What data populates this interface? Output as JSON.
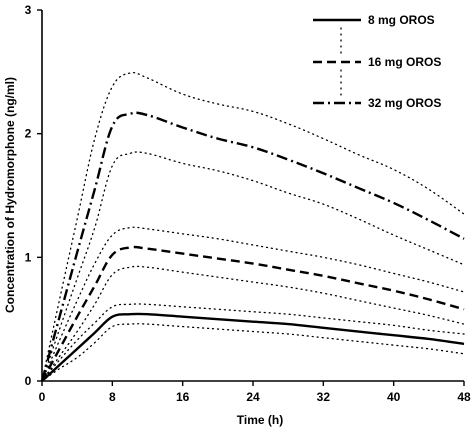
{
  "chart_data": {
    "type": "line",
    "title": "",
    "xlabel": "Time (h)",
    "ylabel": "Concentration of Hydromorphone (ng/ml)",
    "xlim": [
      0,
      48
    ],
    "ylim": [
      0,
      3
    ],
    "x_ticks": [
      "0",
      "8",
      "16",
      "24",
      "32",
      "40",
      "48"
    ],
    "y_ticks": [
      "0",
      "1",
      "2",
      "3"
    ],
    "grid": false,
    "legend_position": "top-right",
    "series": [
      {
        "name": "8 mg OROS",
        "style": "solid",
        "x": [
          0,
          2,
          4,
          6,
          8,
          10,
          12,
          16,
          20,
          24,
          28,
          32,
          36,
          40,
          44,
          48
        ],
        "y": [
          0,
          0.13,
          0.26,
          0.39,
          0.52,
          0.54,
          0.54,
          0.52,
          0.5,
          0.48,
          0.46,
          0.43,
          0.4,
          0.37,
          0.34,
          0.3
        ],
        "ci_upper": [
          0,
          0.17,
          0.33,
          0.47,
          0.6,
          0.62,
          0.62,
          0.6,
          0.58,
          0.56,
          0.54,
          0.51,
          0.48,
          0.45,
          0.41,
          0.38
        ],
        "ci_lower": [
          0,
          0.1,
          0.19,
          0.31,
          0.44,
          0.46,
          0.46,
          0.44,
          0.42,
          0.4,
          0.38,
          0.35,
          0.32,
          0.29,
          0.26,
          0.22
        ]
      },
      {
        "name": "16 mg OROS",
        "style": "dashed",
        "x": [
          0,
          2,
          4,
          6,
          8,
          10,
          12,
          16,
          20,
          24,
          28,
          32,
          36,
          40,
          44,
          48
        ],
        "y": [
          0,
          0.26,
          0.52,
          0.77,
          1.02,
          1.08,
          1.07,
          1.03,
          0.99,
          0.95,
          0.9,
          0.85,
          0.79,
          0.73,
          0.66,
          0.58
        ],
        "ci_upper": [
          0,
          0.33,
          0.65,
          0.95,
          1.18,
          1.24,
          1.23,
          1.19,
          1.15,
          1.1,
          1.05,
          1.0,
          0.94,
          0.87,
          0.8,
          0.72
        ],
        "ci_lower": [
          0,
          0.2,
          0.4,
          0.62,
          0.86,
          0.92,
          0.92,
          0.88,
          0.84,
          0.8,
          0.76,
          0.71,
          0.65,
          0.59,
          0.53,
          0.46
        ]
      },
      {
        "name": "32 mg OROS",
        "style": "dashdot",
        "x": [
          0,
          2,
          4,
          6,
          8,
          10,
          12,
          16,
          20,
          24,
          28,
          32,
          36,
          40,
          44,
          48
        ],
        "y": [
          0,
          0.52,
          1.04,
          1.55,
          2.06,
          2.16,
          2.15,
          2.05,
          1.96,
          1.89,
          1.79,
          1.68,
          1.56,
          1.44,
          1.3,
          1.15
        ],
        "ci_upper": [
          0,
          0.66,
          1.31,
          1.96,
          2.38,
          2.49,
          2.45,
          2.32,
          2.24,
          2.18,
          2.08,
          1.96,
          1.83,
          1.71,
          1.55,
          1.35
        ],
        "ci_lower": [
          0,
          0.42,
          0.83,
          1.24,
          1.74,
          1.84,
          1.84,
          1.76,
          1.7,
          1.62,
          1.52,
          1.43,
          1.31,
          1.18,
          1.06,
          0.94
        ]
      }
    ]
  }
}
